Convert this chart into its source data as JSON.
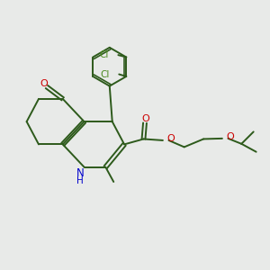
{
  "background_color": "#e8eae8",
  "bond_color": "#2d5a1b",
  "bond_width": 1.4,
  "n_color": "#0000cc",
  "o_color": "#cc0000",
  "cl_color": "#4a8a20",
  "figsize": [
    3.0,
    3.0
  ],
  "dpi": 100,
  "xlim": [
    0,
    10
  ],
  "ylim": [
    0,
    10
  ]
}
